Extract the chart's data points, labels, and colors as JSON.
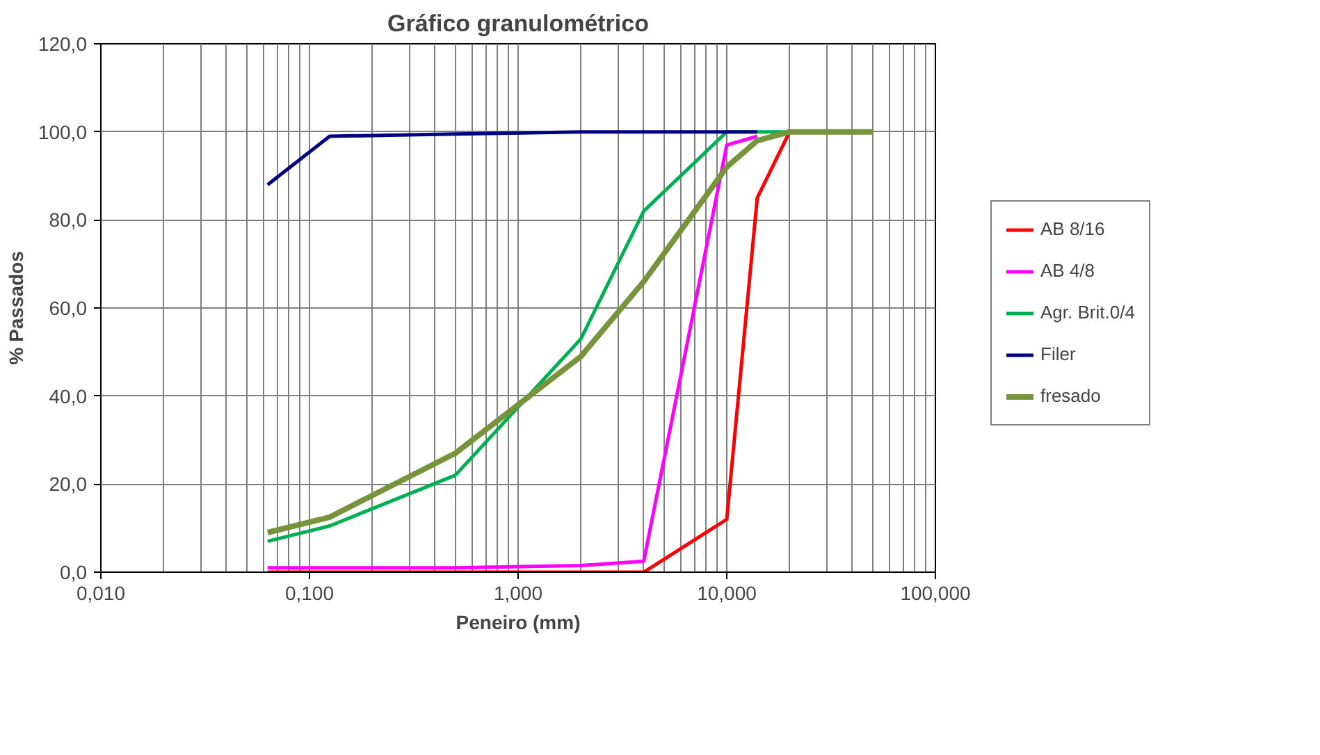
{
  "chart_data": {
    "type": "line",
    "title": "Gráfico granulométrico",
    "xlabel": "Peneiro (mm)",
    "ylabel": "% Passados",
    "log": "x",
    "grid": true,
    "legend": "right",
    "marker": "none",
    "line_style": "solid",
    "xlim": [
      0.01,
      100
    ],
    "xticks": [
      {
        "value": 0.01,
        "label": "0,010"
      },
      {
        "value": 0.1,
        "label": "0,100"
      },
      {
        "value": 1,
        "label": "1,000"
      },
      {
        "value": 10,
        "label": "10,000"
      },
      {
        "value": 100,
        "label": "100,000"
      }
    ],
    "ylim": [
      0,
      120
    ],
    "yticks": [
      {
        "value": 0,
        "label": "0,0"
      },
      {
        "value": 20,
        "label": "20,0"
      },
      {
        "value": 40,
        "label": "40,0"
      },
      {
        "value": 60,
        "label": "60,0"
      },
      {
        "value": 80,
        "label": "80,0"
      },
      {
        "value": 100,
        "label": "100,0"
      },
      {
        "value": 120,
        "label": "120,0"
      }
    ],
    "series": [
      {
        "name": "AB 8/16",
        "color": "#ff0000",
        "x": [
          0.063,
          0.125,
          0.5,
          2,
          4,
          10,
          14,
          20
        ],
        "values": [
          0,
          0,
          0,
          0,
          0,
          12,
          85,
          100
        ]
      },
      {
        "name": "AB 4/8",
        "color": "#ff00ff",
        "x": [
          0.063,
          0.125,
          0.5,
          2,
          4,
          10,
          14
        ],
        "values": [
          1,
          1,
          1,
          1.5,
          2.5,
          97,
          99
        ]
      },
      {
        "name": "Agr. Brit.0/4",
        "color": "#00b050",
        "x": [
          0.063,
          0.125,
          0.5,
          2,
          4,
          10,
          14,
          20
        ],
        "values": [
          7,
          10.5,
          22,
          53,
          82,
          100,
          100,
          100
        ]
      },
      {
        "name": "Filer",
        "color": "#000080",
        "x": [
          0.063,
          0.125,
          0.5,
          2,
          4,
          10,
          14
        ],
        "values": [
          88,
          99,
          99.5,
          100,
          100,
          100,
          100
        ]
      },
      {
        "name": "fresado",
        "color": "#77933c",
        "x": [
          0.063,
          0.125,
          0.5,
          2,
          4,
          10,
          14,
          20,
          50
        ],
        "values": [
          9,
          12.5,
          27,
          49,
          66,
          92,
          98,
          100,
          100
        ]
      }
    ]
  }
}
